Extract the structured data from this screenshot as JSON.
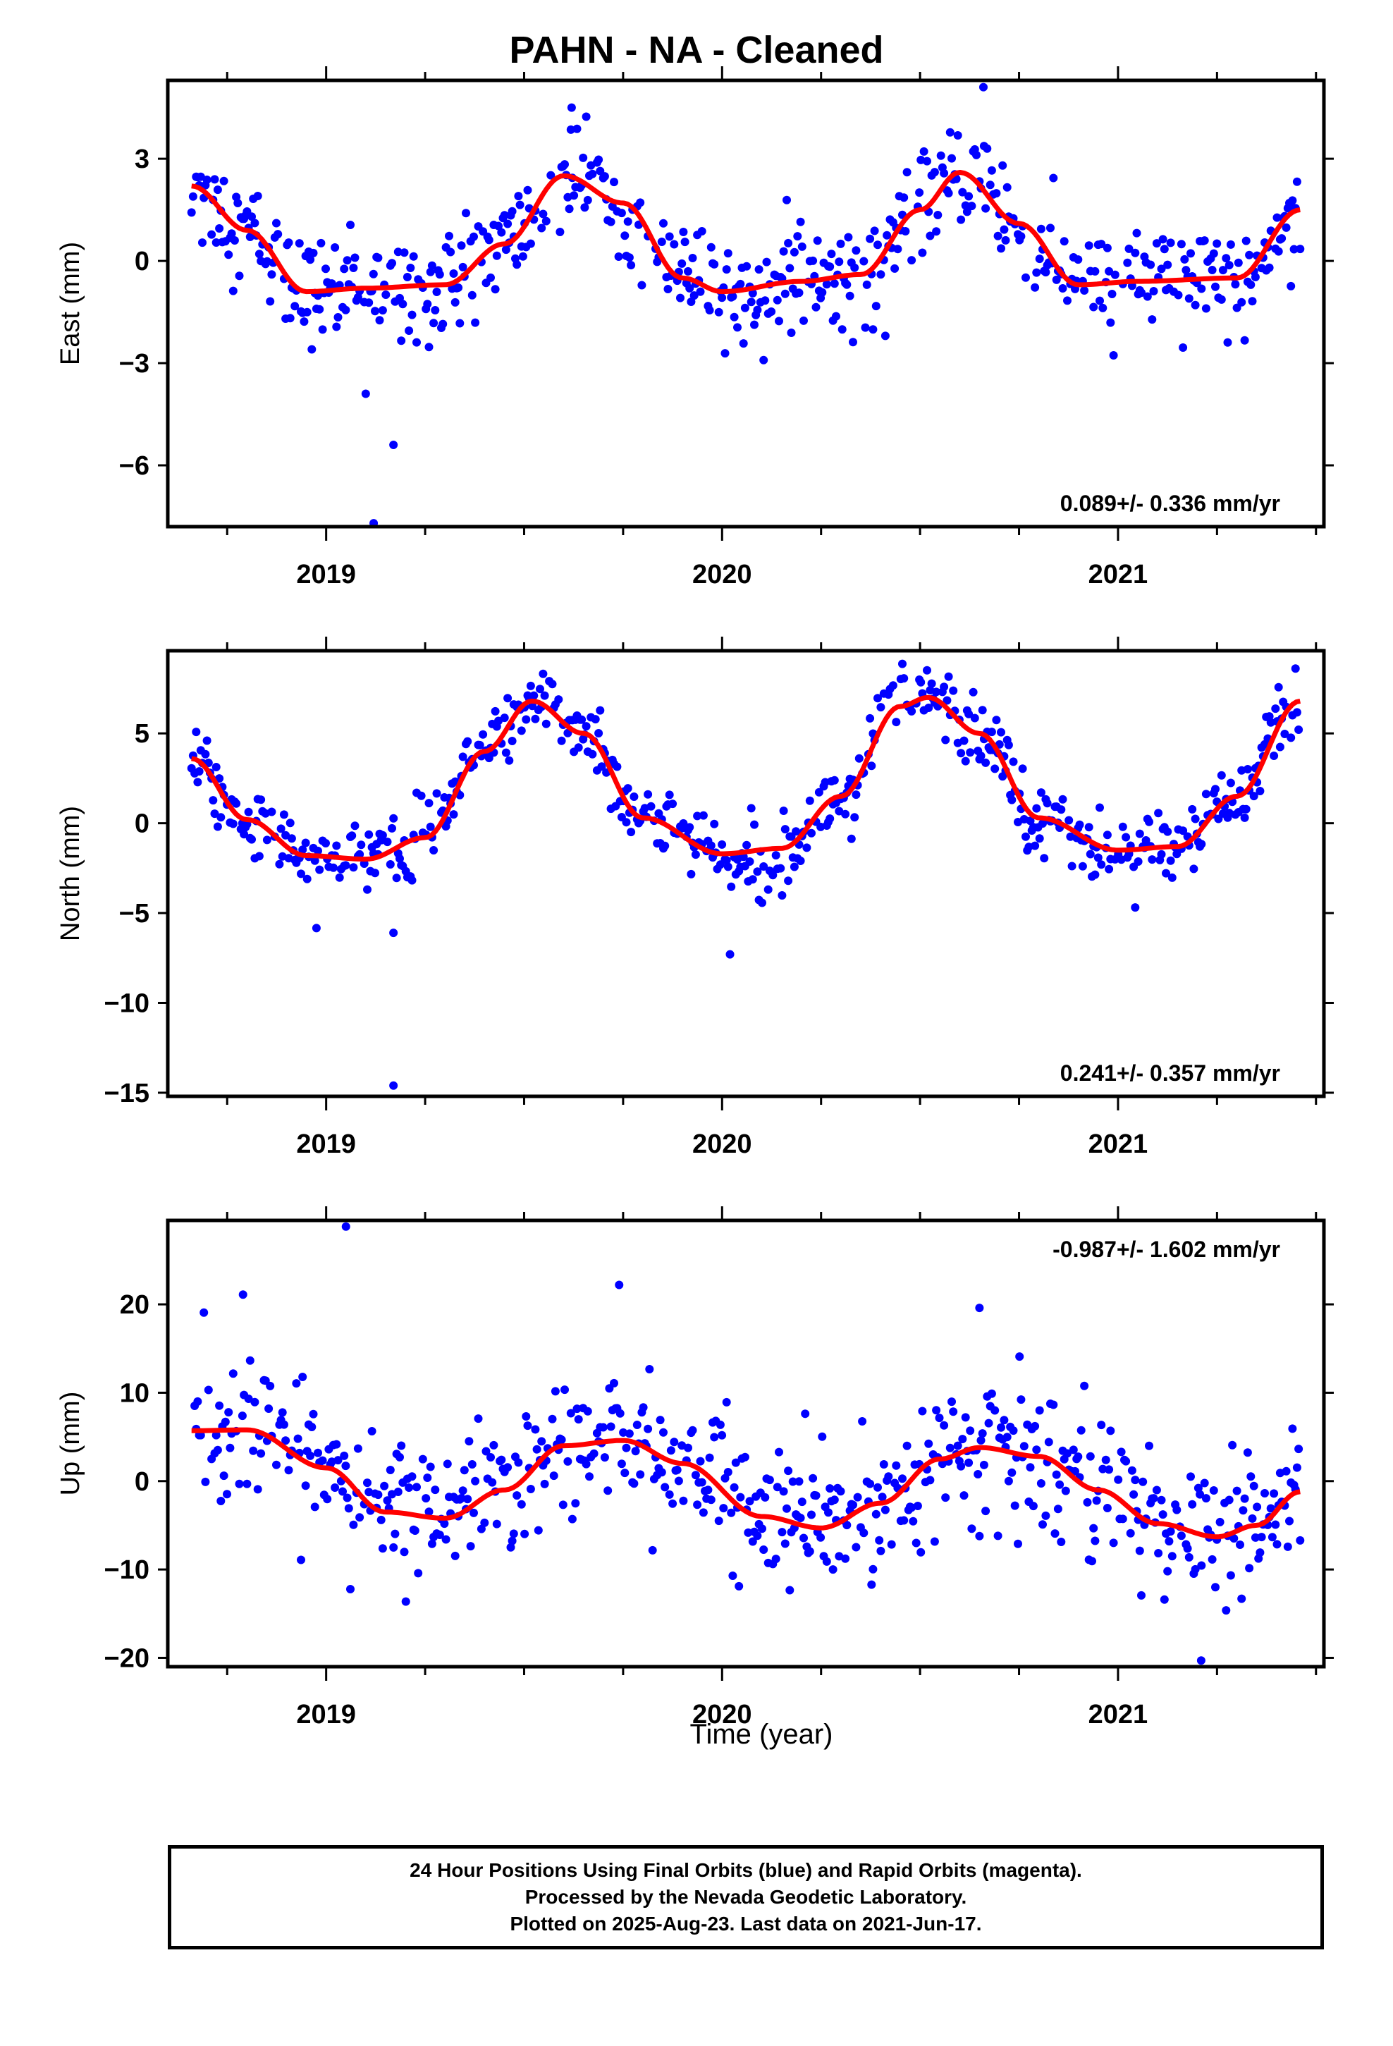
{
  "title": "PAHN  - NA - Cleaned",
  "x_axis_title": "Time (year)",
  "footer": {
    "line1": "24 Hour Positions Using Final Orbits (blue) and Rapid Orbits (magenta).",
    "line2": "Processed by the Nevada Geodetic Laboratory.",
    "line3": "Plotted on 2025-Aug-23. Last data on 2021-Jun-17."
  },
  "colors": {
    "points": "#0000ff",
    "fit": "#ff0000",
    "frame": "#000000"
  },
  "chart_data": [
    {
      "type": "scatter",
      "ylabel": "East (mm)",
      "xlim": [
        2018.6,
        2021.52
      ],
      "ylim": [
        -7.8,
        5.3
      ],
      "yticks": [
        -6,
        -3,
        0,
        3
      ],
      "ytick_labels": [
        "−6",
        "−3",
        "0",
        "3"
      ],
      "xticks": [
        2019,
        2020,
        2021
      ],
      "xtick_labels": [
        "2019",
        "2020",
        "2021"
      ],
      "rate_label": "0.089+/- 0.336 mm/yr",
      "rate_position": "bottom-right",
      "series": [
        {
          "kind": "points",
          "x_range": [
            2018.66,
            2021.46
          ],
          "period_gaps": [
            [
              2019.52,
              2019.59
            ],
            [
              2020.77,
              2020.79
            ]
          ],
          "fit_curve_samples": [
            [
              2018.66,
              2.2
            ],
            [
              2018.8,
              0.9
            ],
            [
              2018.95,
              -0.9
            ],
            [
              2019.1,
              -0.8
            ],
            [
              2019.3,
              -0.7
            ],
            [
              2019.45,
              0.5
            ],
            [
              2019.6,
              2.5
            ],
            [
              2019.75,
              1.7
            ],
            [
              2019.9,
              -0.5
            ],
            [
              2020.0,
              -0.9
            ],
            [
              2020.2,
              -0.6
            ],
            [
              2020.35,
              -0.4
            ],
            [
              2020.5,
              1.5
            ],
            [
              2020.6,
              2.6
            ],
            [
              2020.75,
              1.1
            ],
            [
              2020.9,
              -0.7
            ],
            [
              2021.05,
              -0.6
            ],
            [
              2021.3,
              -0.5
            ],
            [
              2021.46,
              1.5
            ]
          ],
          "outliers": [
            [
              2019.12,
              -7.7
            ],
            [
              2019.17,
              -5.4
            ],
            [
              2019.1,
              -3.9
            ],
            [
              2019.62,
              4.5
            ],
            [
              2020.66,
              5.1
            ]
          ]
        },
        {
          "kind": "fit",
          "name": ""
        }
      ]
    },
    {
      "type": "scatter",
      "ylabel": "North (mm)",
      "xlim": [
        2018.6,
        2021.52
      ],
      "ylim": [
        -15.2,
        9.6
      ],
      "yticks": [
        -15,
        -10,
        -5,
        0,
        5
      ],
      "ytick_labels": [
        "−15",
        "−10",
        "−5",
        "0",
        "5"
      ],
      "xticks": [
        2019,
        2020,
        2021
      ],
      "xtick_labels": [
        "2019",
        "2020",
        "2021"
      ],
      "rate_label": "0.241+/- 0.357 mm/yr",
      "rate_position": "bottom-right",
      "series": [
        {
          "kind": "points",
          "x_range": [
            2018.66,
            2021.46
          ],
          "fit_curve_samples": [
            [
              2018.66,
              3.6
            ],
            [
              2018.8,
              0.2
            ],
            [
              2018.95,
              -1.8
            ],
            [
              2019.1,
              -2.0
            ],
            [
              2019.25,
              -0.8
            ],
            [
              2019.4,
              4.0
            ],
            [
              2019.52,
              6.8
            ],
            [
              2019.65,
              5.0
            ],
            [
              2019.8,
              0.3
            ],
            [
              2020.0,
              -1.7
            ],
            [
              2020.15,
              -1.4
            ],
            [
              2020.3,
              1.5
            ],
            [
              2020.45,
              6.5
            ],
            [
              2020.52,
              7.0
            ],
            [
              2020.65,
              5.0
            ],
            [
              2020.8,
              0.3
            ],
            [
              2021.0,
              -1.5
            ],
            [
              2021.15,
              -1.3
            ],
            [
              2021.3,
              1.5
            ],
            [
              2021.46,
              6.8
            ]
          ],
          "outliers": [
            [
              2019.17,
              -14.6
            ],
            [
              2020.02,
              -7.3
            ],
            [
              2019.17,
              -6.1
            ]
          ]
        },
        {
          "kind": "fit",
          "name": ""
        }
      ]
    },
    {
      "type": "scatter",
      "ylabel": "Up (mm)",
      "xlim": [
        2018.6,
        2021.52
      ],
      "ylim": [
        -21,
        29.5
      ],
      "yticks": [
        -20,
        -10,
        0,
        10,
        20
      ],
      "ytick_labels": [
        "−20",
        "−10",
        "0",
        "10",
        "20"
      ],
      "xticks": [
        2019,
        2020,
        2021
      ],
      "xtick_labels": [
        "2019",
        "2020",
        "2021"
      ],
      "rate_label": "-0.987+/- 1.602 mm/yr",
      "rate_position": "top-right",
      "series": [
        {
          "kind": "points",
          "x_range": [
            2018.66,
            2021.46
          ],
          "fit_curve_samples": [
            [
              2018.66,
              5.7
            ],
            [
              2018.8,
              5.8
            ],
            [
              2019.0,
              1.5
            ],
            [
              2019.15,
              -3.5
            ],
            [
              2019.3,
              -4.2
            ],
            [
              2019.45,
              -1.0
            ],
            [
              2019.6,
              4.0
            ],
            [
              2019.75,
              4.6
            ],
            [
              2019.9,
              2.0
            ],
            [
              2020.1,
              -4.0
            ],
            [
              2020.25,
              -5.3
            ],
            [
              2020.4,
              -2.5
            ],
            [
              2020.55,
              2.5
            ],
            [
              2020.65,
              3.8
            ],
            [
              2020.8,
              2.8
            ],
            [
              2020.95,
              -1.0
            ],
            [
              2021.1,
              -4.8
            ],
            [
              2021.25,
              -6.3
            ],
            [
              2021.35,
              -5.0
            ],
            [
              2021.46,
              -1.2
            ]
          ],
          "outliers": [
            [
              2019.05,
              28.8
            ],
            [
              2019.74,
              22.2
            ],
            [
              2018.79,
              21.1
            ],
            [
              2020.65,
              19.6
            ],
            [
              2021.21,
              -20.3
            ]
          ]
        },
        {
          "kind": "fit",
          "name": ""
        }
      ]
    }
  ]
}
